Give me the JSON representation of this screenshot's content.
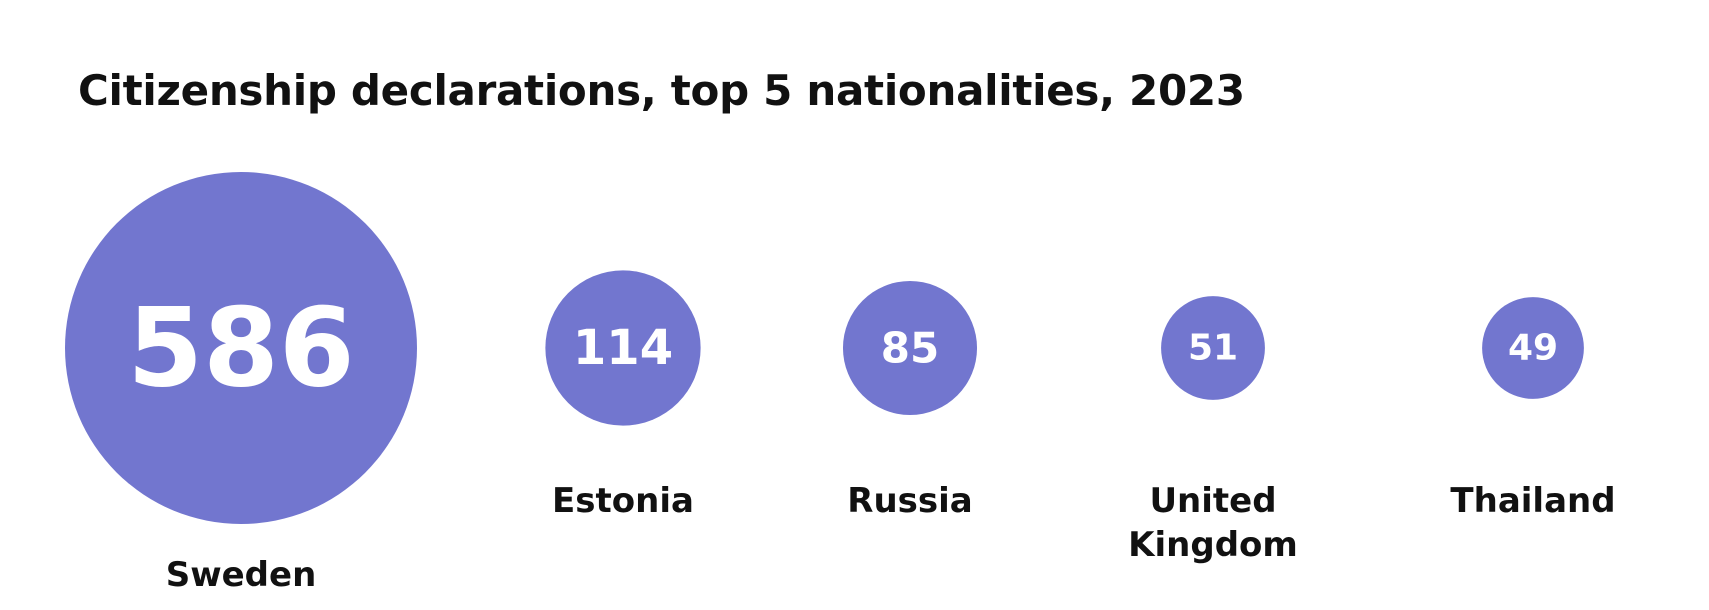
{
  "chart_data": {
    "type": "bubble",
    "title": "Citizenship declarations, top 5 nationalities, 2023",
    "categories": [
      "Sweden",
      "Estonia",
      "Russia",
      "United Kingdom",
      "Thailand"
    ],
    "label_lines": [
      [
        "Sweden"
      ],
      [
        "Estonia"
      ],
      [
        "Russia"
      ],
      [
        "United",
        "Kingdom"
      ],
      [
        "Thailand"
      ]
    ],
    "values": [
      586,
      114,
      85,
      51,
      49
    ],
    "value_labels": [
      "586",
      "114",
      "85",
      "51",
      "49"
    ],
    "color": "#7276cf"
  }
}
